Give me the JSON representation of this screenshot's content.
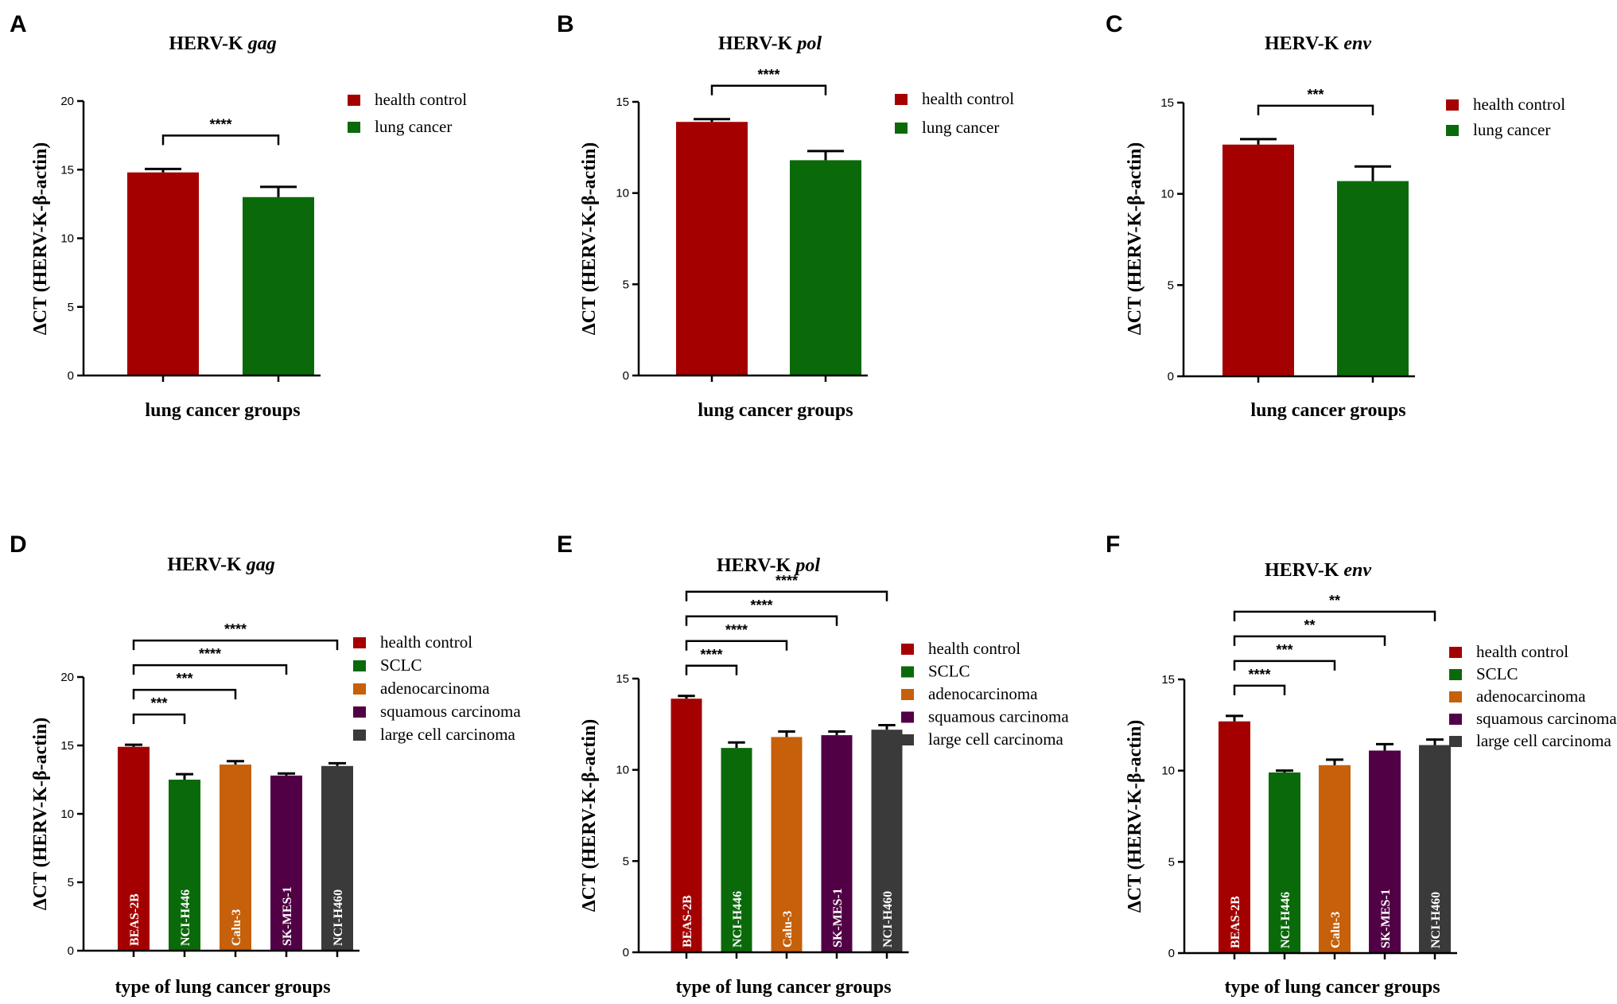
{
  "colors": {
    "health_control": "#a50000",
    "SCLC": "#0a6a0a",
    "adenocarcinoma": "#c6600a",
    "squamous": "#520046",
    "large_cell": "#3a3a3a",
    "lung_cancer": "#0a6a0a"
  },
  "chart_data": [
    {
      "panel": "A",
      "type": "bar",
      "title_main": "HERV-K ",
      "title_gene": "gag",
      "xlabel": "lung cancer groups",
      "ylabel": "ΔCT (HERV-K-β-actin)",
      "ylim": [
        0,
        20
      ],
      "yticks": [
        0,
        5,
        10,
        15,
        20
      ],
      "categories": [
        "health control",
        "lung cancer"
      ],
      "values": [
        14.8,
        13.0
      ],
      "errors": [
        0.25,
        0.75
      ],
      "bar_colors": [
        "#a50000",
        "#0a6a0a"
      ],
      "bar_labels": [],
      "legend": [
        {
          "label": "health control",
          "color": "#a50000"
        },
        {
          "label": "lung cancer",
          "color": "#0a6a0a"
        }
      ],
      "significance": [
        {
          "from": 0,
          "to": 1,
          "label": "****"
        }
      ]
    },
    {
      "panel": "B",
      "type": "bar",
      "title_main": "HERV-K ",
      "title_gene": "pol",
      "xlabel": "lung cancer groups",
      "ylabel": "ΔCT (HERV-K-β-actin)",
      "ylim": [
        0,
        15
      ],
      "yticks": [
        0,
        5,
        10,
        15
      ],
      "categories": [
        "health control",
        "lung cancer"
      ],
      "values": [
        13.9,
        11.8
      ],
      "errors": [
        0.15,
        0.5
      ],
      "bar_colors": [
        "#a50000",
        "#0a6a0a"
      ],
      "bar_labels": [],
      "legend": [
        {
          "label": "health control",
          "color": "#a50000"
        },
        {
          "label": "lung cancer",
          "color": "#0a6a0a"
        }
      ],
      "significance": [
        {
          "from": 0,
          "to": 1,
          "label": "****"
        }
      ]
    },
    {
      "panel": "C",
      "type": "bar",
      "title_main": "HERV-K ",
      "title_gene": "env",
      "xlabel": "lung cancer groups",
      "ylabel": "ΔCT (HERV-K-β-actin)",
      "ylim": [
        0,
        15
      ],
      "yticks": [
        0,
        5,
        10,
        15
      ],
      "categories": [
        "health control",
        "lung cancer"
      ],
      "values": [
        12.7,
        10.7
      ],
      "errors": [
        0.3,
        0.8
      ],
      "bar_colors": [
        "#a50000",
        "#0a6a0a"
      ],
      "bar_labels": [],
      "legend": [
        {
          "label": "health control",
          "color": "#a50000"
        },
        {
          "label": "lung cancer",
          "color": "#0a6a0a"
        }
      ],
      "significance": [
        {
          "from": 0,
          "to": 1,
          "label": "***"
        }
      ]
    },
    {
      "panel": "D",
      "type": "bar",
      "title_main": "HERV-K ",
      "title_gene": "gag",
      "xlabel": "type of lung cancer groups",
      "ylabel": "ΔCT (HERV-K-β-actin)",
      "ylim": [
        0,
        20
      ],
      "yticks": [
        0,
        5,
        10,
        15,
        20
      ],
      "categories": [
        "health control",
        "SCLC",
        "adenocarcinoma",
        "squamous carcinoma",
        " large cell carcinoma"
      ],
      "values": [
        14.9,
        12.5,
        13.6,
        12.8,
        13.5
      ],
      "errors": [
        0.15,
        0.4,
        0.25,
        0.15,
        0.2
      ],
      "bar_colors": [
        "#a50000",
        "#0a6a0a",
        "#c6600a",
        "#520046",
        "#3a3a3a"
      ],
      "bar_labels": [
        "BEAS-2B",
        "NCI-H446",
        "Calu-3",
        "SK-MES-1",
        "NCI-H460"
      ],
      "legend": [
        {
          "label": "health control",
          "color": "#a50000"
        },
        {
          "label": "SCLC",
          "color": "#0a6a0a"
        },
        {
          "label": "adenocarcinoma",
          "color": "#c6600a"
        },
        {
          "label": "squamous carcinoma",
          "color": "#520046"
        },
        {
          "label": " large cell carcinoma",
          "color": "#3a3a3a"
        }
      ],
      "significance": [
        {
          "from": 0,
          "to": 1,
          "label": "***"
        },
        {
          "from": 0,
          "to": 2,
          "label": "***"
        },
        {
          "from": 0,
          "to": 3,
          "label": "****"
        },
        {
          "from": 0,
          "to": 4,
          "label": "****"
        }
      ]
    },
    {
      "panel": "E",
      "type": "bar",
      "title_main": "HERV-K ",
      "title_gene": "pol",
      "xlabel": "type of lung cancer groups",
      "ylabel": "ΔCT (HERV-K-β-actin)",
      "ylim": [
        0,
        15
      ],
      "yticks": [
        0,
        5,
        10,
        15
      ],
      "categories": [
        "health control",
        "SCLC",
        "adenocarcinoma",
        "squamous carcinoma",
        " large cell carcinoma"
      ],
      "values": [
        13.9,
        11.2,
        11.8,
        11.9,
        12.2
      ],
      "errors": [
        0.15,
        0.3,
        0.3,
        0.2,
        0.25
      ],
      "bar_colors": [
        "#a50000",
        "#0a6a0a",
        "#c6600a",
        "#520046",
        "#3a3a3a"
      ],
      "bar_labels": [
        "BEAS-2B",
        "NCI-H446",
        "Calu-3",
        "SK-MES-1",
        "NCI-H460"
      ],
      "legend": [
        {
          "label": "health control",
          "color": "#a50000"
        },
        {
          "label": "SCLC",
          "color": "#0a6a0a"
        },
        {
          "label": "adenocarcinoma",
          "color": "#c6600a"
        },
        {
          "label": "squamous carcinoma",
          "color": "#520046"
        },
        {
          "label": " large cell carcinoma",
          "color": "#3a3a3a"
        }
      ],
      "significance": [
        {
          "from": 0,
          "to": 1,
          "label": "****"
        },
        {
          "from": 0,
          "to": 2,
          "label": "****"
        },
        {
          "from": 0,
          "to": 3,
          "label": "****"
        },
        {
          "from": 0,
          "to": 4,
          "label": "****"
        }
      ]
    },
    {
      "panel": "F",
      "type": "bar",
      "title_main": "HERV-K ",
      "title_gene": "env",
      "xlabel": "type of lung cancer groups",
      "ylabel": "ΔCT (HERV-K-β-actin)",
      "ylim": [
        0,
        15
      ],
      "yticks": [
        0,
        5,
        10,
        15
      ],
      "categories": [
        "health control",
        "SCLC",
        "adenocarcinoma",
        "squamous carcinoma",
        " large cell carcinoma"
      ],
      "values": [
        12.7,
        9.9,
        10.3,
        11.1,
        11.4
      ],
      "errors": [
        0.3,
        0.1,
        0.3,
        0.35,
        0.3
      ],
      "bar_colors": [
        "#a50000",
        "#0a6a0a",
        "#c6600a",
        "#520046",
        "#3a3a3a"
      ],
      "bar_labels": [
        "BEAS-2B",
        "NCI-H446",
        "Calu-3",
        "SK-MES-1",
        "NCI-H460"
      ],
      "legend": [
        {
          "label": "health control",
          "color": "#a50000"
        },
        {
          "label": "SCLC",
          "color": "#0a6a0a"
        },
        {
          "label": "adenocarcinoma",
          "color": "#c6600a"
        },
        {
          "label": "squamous carcinoma",
          "color": "#520046"
        },
        {
          "label": " large cell carcinoma",
          "color": "#3a3a3a"
        }
      ],
      "significance": [
        {
          "from": 0,
          "to": 1,
          "label": "****"
        },
        {
          "from": 0,
          "to": 2,
          "label": "***"
        },
        {
          "from": 0,
          "to": 3,
          "label": "**"
        },
        {
          "from": 0,
          "to": 4,
          "label": "**"
        }
      ]
    }
  ]
}
